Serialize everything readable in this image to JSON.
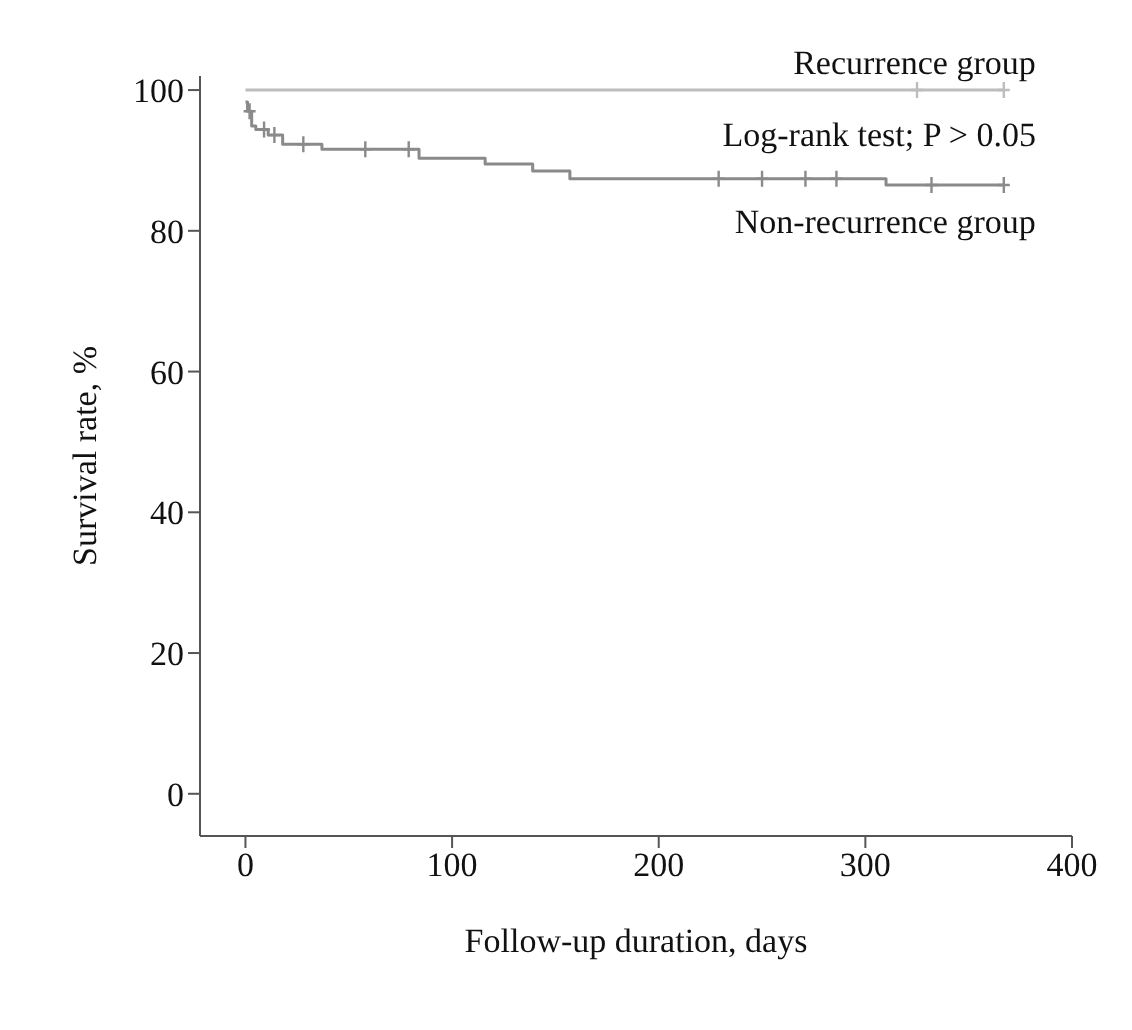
{
  "chart_data": {
    "type": "step",
    "xlabel": "Follow-up duration, days",
    "ylabel": "Survival rate, %",
    "annotations": [
      "Log-rank test; P > 0.05"
    ],
    "xlim": [
      -22,
      400
    ],
    "xticks": [
      0,
      100,
      200,
      300,
      400
    ],
    "ylim": [
      -6,
      102
    ],
    "yticks": [
      0,
      20,
      40,
      60,
      80,
      100
    ],
    "grid": false,
    "legend": false,
    "marker": "none",
    "series": [
      {
        "name": "Recurrence group",
        "color": "#bdbdbd",
        "x": [
          0,
          367
        ],
        "values": [
          100,
          100
        ]
      },
      {
        "name": "Non-recurrence group",
        "color": "#8a8a8a",
        "x": [
          0,
          1,
          3,
          5,
          11,
          18,
          37,
          84,
          116,
          139,
          157,
          310,
          367
        ],
        "values": [
          98.3,
          97.0,
          94.9,
          94.4,
          93.6,
          92.3,
          91.6,
          90.3,
          89.5,
          88.5,
          87.4,
          86.5,
          86.5
        ]
      },
      {
        "type": "scatter",
        "color": "#bdbdbd",
        "marker": "cross",
        "x": [
          325,
          367
        ],
        "values": [
          100,
          100
        ]
      },
      {
        "type": "scatter",
        "color": "#8a8a8a",
        "marker": "cross",
        "x": [
          2,
          9,
          14,
          28,
          58,
          79,
          229,
          250,
          271,
          286,
          332,
          367
        ],
        "values": [
          97.0,
          94.4,
          93.6,
          92.3,
          91.6,
          91.6,
          87.4,
          87.4,
          87.4,
          87.4,
          86.5,
          86.5
        ]
      }
    ]
  }
}
